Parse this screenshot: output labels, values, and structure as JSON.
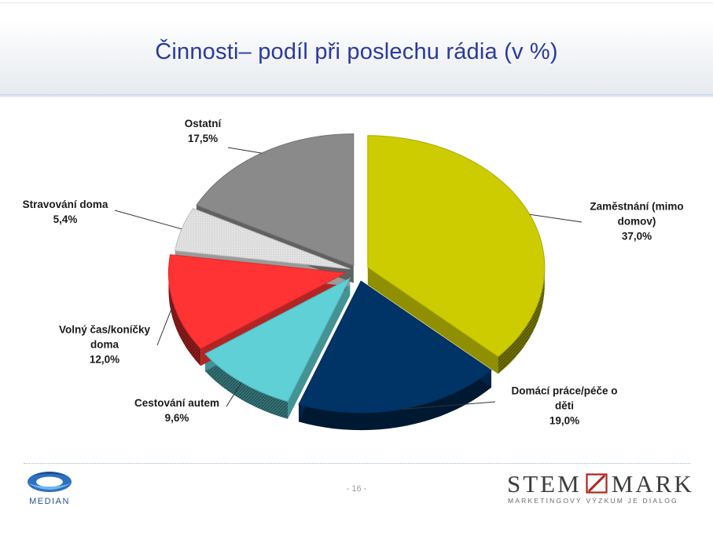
{
  "slide": {
    "title": "Činnosti– podíl při poslechu rádia (v %)",
    "page_number": "- 16 -"
  },
  "logos": {
    "left_brand": "MEDIAN",
    "right_brand_part1": "STEM",
    "right_brand_part2": "MARK",
    "right_tagline": "MARKETINGOVÝ VÝZKUM JE DIALOG"
  },
  "chart_data": {
    "type": "pie",
    "title": "Činnosti– podíl při poslechu rádia (v %)",
    "unit": "%",
    "exploded": true,
    "three_d": true,
    "legend": "none",
    "slices": [
      {
        "name": "Zaměstnání (mimo domov)",
        "label_lines": [
          "Zaměstnání (mimo",
          "domov)"
        ],
        "value": 37.0,
        "value_label": "37,0%",
        "color": "#cccc00"
      },
      {
        "name": "Domácí práce/péče o děti",
        "label_lines": [
          "Domácí práce/péče o",
          "děti"
        ],
        "value": 19.0,
        "value_label": "19,0%",
        "color": "#003366"
      },
      {
        "name": "Cestování autem",
        "label_lines": [
          "Cestování autem"
        ],
        "value": 9.6,
        "value_label": "9,6%",
        "color": "#5fd0d6"
      },
      {
        "name": "Volný čas/koníčky doma",
        "label_lines": [
          "Volný čas/koníčky",
          "doma"
        ],
        "value": 12.0,
        "value_label": "12,0%",
        "color": "#ff3333"
      },
      {
        "name": "Stravování doma",
        "label_lines": [
          "Stravování doma"
        ],
        "value": 5.4,
        "value_label": "5,4%",
        "color": "#dcdcdc"
      },
      {
        "name": "Ostatní",
        "label_lines": [
          "Ostatní"
        ],
        "value": 17.5,
        "value_label": "17,5%",
        "color": "#8a8a8a"
      }
    ]
  }
}
